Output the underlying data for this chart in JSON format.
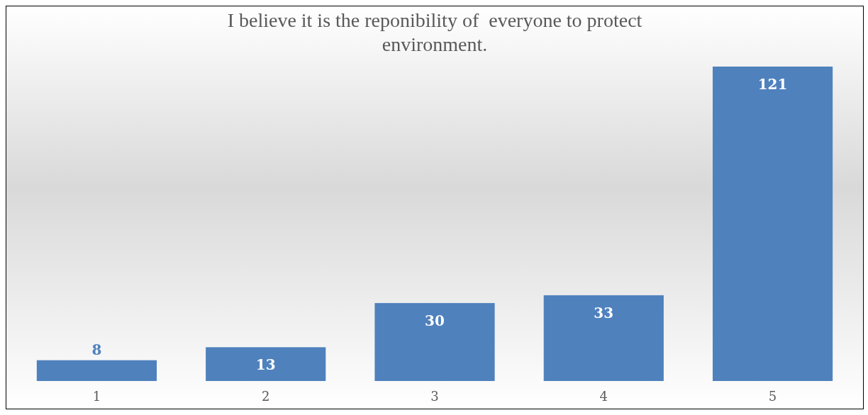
{
  "chart_data": {
    "type": "bar",
    "title": "I believe it is the reponibility of  everyone to protect environment.",
    "categories": [
      "1",
      "2",
      "3",
      "4",
      "5"
    ],
    "values": [
      8,
      13,
      30,
      33,
      121
    ],
    "color": "#4f81bd",
    "data_labels": true
  }
}
